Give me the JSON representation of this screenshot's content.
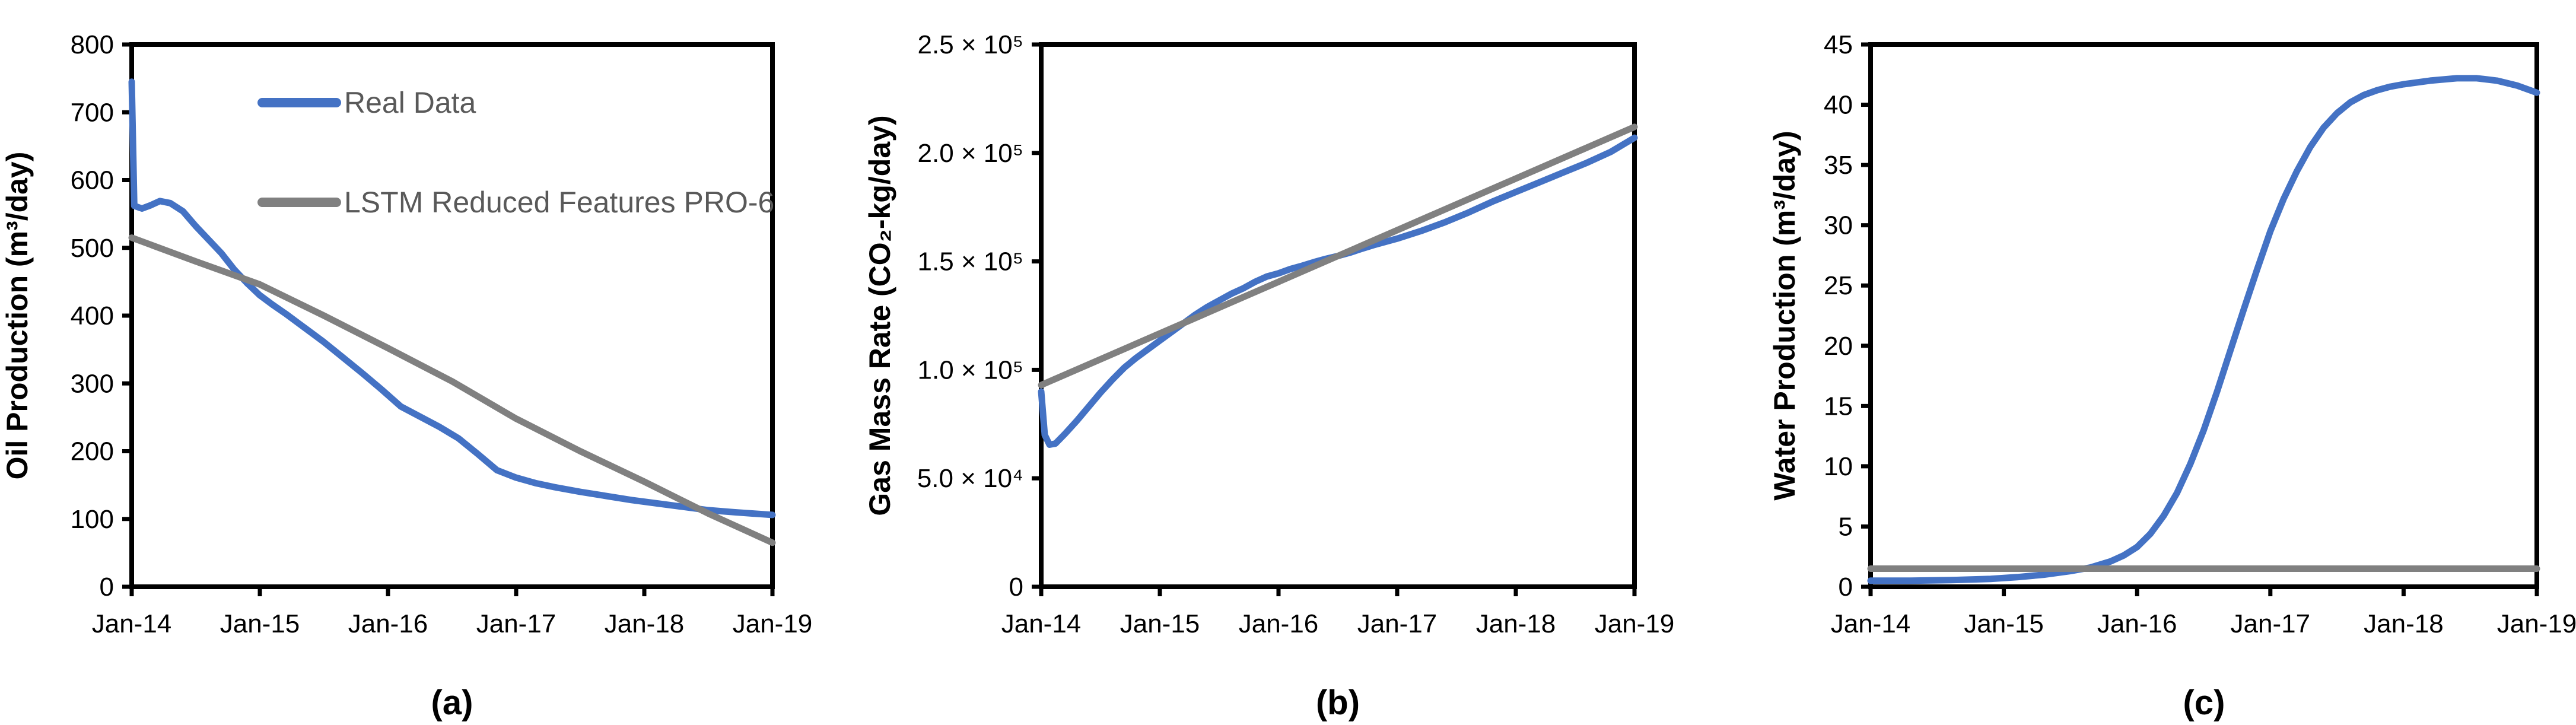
{
  "figure_background": "#FFFFFF",
  "colors": {
    "real_data_line": "#4472C4",
    "lstm_line": "#808080",
    "legend_text": "#595959",
    "axis": "#000000"
  },
  "chart_data": [
    {
      "id": "a",
      "type": "line",
      "caption": "(a)",
      "xlabel": "",
      "ylabel": "Oil Production (m³/day)",
      "xlim": [
        0,
        5
      ],
      "ylim": [
        0,
        800
      ],
      "grid": false,
      "xticks": {
        "values": [
          0,
          1,
          2,
          3,
          4,
          5
        ],
        "labels": [
          "Jan-14",
          "Jan-15",
          "Jan-16",
          "Jan-17",
          "Jan-18",
          "Jan-19"
        ]
      },
      "yticks": {
        "values": [
          0,
          100,
          200,
          300,
          400,
          500,
          600,
          700,
          800
        ],
        "labels": [
          "0",
          "100",
          "200",
          "300",
          "400",
          "500",
          "600",
          "700",
          "800"
        ]
      },
      "legend": {
        "visible": true,
        "position": "inside-top-left"
      },
      "series": [
        {
          "name": "Real Data",
          "color": "#4472C4",
          "points": [
            [
              0,
              745
            ],
            [
              0.02,
              562
            ],
            [
              0.08,
              558
            ],
            [
              0.15,
              563
            ],
            [
              0.22,
              569
            ],
            [
              0.3,
              566
            ],
            [
              0.4,
              554
            ],
            [
              0.5,
              532
            ],
            [
              0.6,
              512
            ],
            [
              0.7,
              492
            ],
            [
              0.8,
              468
            ],
            [
              0.9,
              448
            ],
            [
              1,
              430
            ],
            [
              1.1,
              416
            ],
            [
              1.2,
              403
            ],
            [
              1.35,
              382
            ],
            [
              1.5,
              361
            ],
            [
              1.65,
              338
            ],
            [
              1.8,
              315
            ],
            [
              1.95,
              291
            ],
            [
              2.1,
              266
            ],
            [
              2.25,
              251
            ],
            [
              2.4,
              236
            ],
            [
              2.55,
              219
            ],
            [
              2.7,
              196
            ],
            [
              2.85,
              172
            ],
            [
              3,
              161
            ],
            [
              3.15,
              153
            ],
            [
              3.3,
              147
            ],
            [
              3.5,
              140
            ],
            [
              3.7,
              134
            ],
            [
              3.9,
              128
            ],
            [
              4.1,
              123
            ],
            [
              4.3,
              118
            ],
            [
              4.5,
              113
            ],
            [
              4.7,
              110
            ],
            [
              4.85,
              108
            ],
            [
              5,
              106
            ]
          ]
        },
        {
          "name": "LSTM Reduced Features PRO-6",
          "color": "#808080",
          "points": [
            [
              0,
              515
            ],
            [
              0.5,
              480
            ],
            [
              1,
              446
            ],
            [
              1.5,
              400
            ],
            [
              2,
              352
            ],
            [
              2.5,
              303
            ],
            [
              3,
              248
            ],
            [
              3.5,
              200
            ],
            [
              4,
              155
            ],
            [
              4.5,
              108
            ],
            [
              5,
              65
            ]
          ]
        }
      ]
    },
    {
      "id": "b",
      "type": "line",
      "caption": "(b)",
      "xlabel": "",
      "ylabel": "Gas Mass Rate (CO₂-kg/day)",
      "xlim": [
        0,
        5
      ],
      "ylim": [
        0,
        250000
      ],
      "grid": false,
      "xticks": {
        "values": [
          0,
          1,
          2,
          3,
          4,
          5
        ],
        "labels": [
          "Jan-14",
          "Jan-15",
          "Jan-16",
          "Jan-17",
          "Jan-18",
          "Jan-19"
        ]
      },
      "yticks": {
        "values": [
          0,
          50000,
          100000,
          150000,
          200000,
          250000
        ],
        "labels": [
          "0",
          "5.0 × 10⁴",
          "1.0 × 10⁵",
          "1.5 × 10⁵",
          "2.0 × 10⁵",
          "2.5 × 10⁵"
        ]
      },
      "legend": {
        "visible": false,
        "position": "none"
      },
      "series": [
        {
          "name": "Real Data",
          "color": "#4472C4",
          "points": [
            [
              0,
              90000
            ],
            [
              0.03,
              70000
            ],
            [
              0.07,
              65500
            ],
            [
              0.12,
              66000
            ],
            [
              0.2,
              70500
            ],
            [
              0.3,
              76500
            ],
            [
              0.4,
              83000
            ],
            [
              0.5,
              89500
            ],
            [
              0.6,
              95500
            ],
            [
              0.7,
              101000
            ],
            [
              0.8,
              105500
            ],
            [
              0.9,
              109500
            ],
            [
              1,
              113500
            ],
            [
              1.1,
              117500
            ],
            [
              1.2,
              121500
            ],
            [
              1.3,
              125500
            ],
            [
              1.4,
              129000
            ],
            [
              1.5,
              132000
            ],
            [
              1.6,
              135000
            ],
            [
              1.7,
              137500
            ],
            [
              1.8,
              140500
            ],
            [
              1.9,
              143000
            ],
            [
              2,
              144500
            ],
            [
              2.1,
              146500
            ],
            [
              2.2,
              148000
            ],
            [
              2.3,
              149700
            ],
            [
              2.4,
              151200
            ],
            [
              2.5,
              152500
            ],
            [
              2.6,
              154000
            ],
            [
              2.7,
              155800
            ],
            [
              2.8,
              157500
            ],
            [
              2.9,
              159000
            ],
            [
              3,
              160500
            ],
            [
              3.2,
              164000
            ],
            [
              3.4,
              168000
            ],
            [
              3.6,
              172500
            ],
            [
              3.8,
              177500
            ],
            [
              4,
              182000
            ],
            [
              4.2,
              186500
            ],
            [
              4.4,
              191000
            ],
            [
              4.6,
              195500
            ],
            [
              4.8,
              200500
            ],
            [
              5,
              207000
            ]
          ]
        },
        {
          "name": "LSTM Reduced Features PRO-6",
          "color": "#808080",
          "points": [
            [
              0,
              93000
            ],
            [
              2.5,
              152500
            ],
            [
              5,
              212000
            ]
          ]
        }
      ]
    },
    {
      "id": "c",
      "type": "line",
      "caption": "(c)",
      "xlabel": "",
      "ylabel": "Water Production (m³/day)",
      "xlim": [
        0,
        5
      ],
      "ylim": [
        0,
        45
      ],
      "grid": false,
      "xticks": {
        "values": [
          0,
          1,
          2,
          3,
          4,
          5
        ],
        "labels": [
          "Jan-14",
          "Jan-15",
          "Jan-16",
          "Jan-17",
          "Jan-18",
          "Jan-19"
        ]
      },
      "yticks": {
        "values": [
          0,
          5,
          10,
          15,
          20,
          25,
          30,
          35,
          40,
          45
        ],
        "labels": [
          "0",
          "5",
          "10",
          "15",
          "20",
          "25",
          "30",
          "35",
          "40",
          "45"
        ]
      },
      "legend": {
        "visible": false,
        "position": "none"
      },
      "series": [
        {
          "name": "Real Data",
          "color": "#4472C4",
          "points": [
            [
              0,
              0.5
            ],
            [
              0.3,
              0.5
            ],
            [
              0.6,
              0.55
            ],
            [
              0.9,
              0.65
            ],
            [
              1.1,
              0.8
            ],
            [
              1.3,
              1
            ],
            [
              1.5,
              1.3
            ],
            [
              1.65,
              1.6
            ],
            [
              1.8,
              2.1
            ],
            [
              1.9,
              2.6
            ],
            [
              2,
              3.3
            ],
            [
              2.1,
              4.4
            ],
            [
              2.2,
              5.9
            ],
            [
              2.3,
              7.8
            ],
            [
              2.4,
              10.2
            ],
            [
              2.5,
              13
            ],
            [
              2.6,
              16.2
            ],
            [
              2.7,
              19.6
            ],
            [
              2.8,
              23
            ],
            [
              2.9,
              26.3
            ],
            [
              3,
              29.5
            ],
            [
              3.1,
              32.2
            ],
            [
              3.2,
              34.5
            ],
            [
              3.3,
              36.5
            ],
            [
              3.4,
              38.1
            ],
            [
              3.5,
              39.3
            ],
            [
              3.6,
              40.2
            ],
            [
              3.7,
              40.8
            ],
            [
              3.8,
              41.2
            ],
            [
              3.9,
              41.5
            ],
            [
              4,
              41.7
            ],
            [
              4.2,
              42
            ],
            [
              4.4,
              42.2
            ],
            [
              4.55,
              42.2
            ],
            [
              4.7,
              42
            ],
            [
              4.85,
              41.6
            ],
            [
              5,
              41
            ]
          ]
        },
        {
          "name": "LSTM Reduced Features PRO-6",
          "color": "#808080",
          "points": [
            [
              0,
              1.5
            ],
            [
              5,
              1.5
            ]
          ]
        }
      ]
    }
  ]
}
